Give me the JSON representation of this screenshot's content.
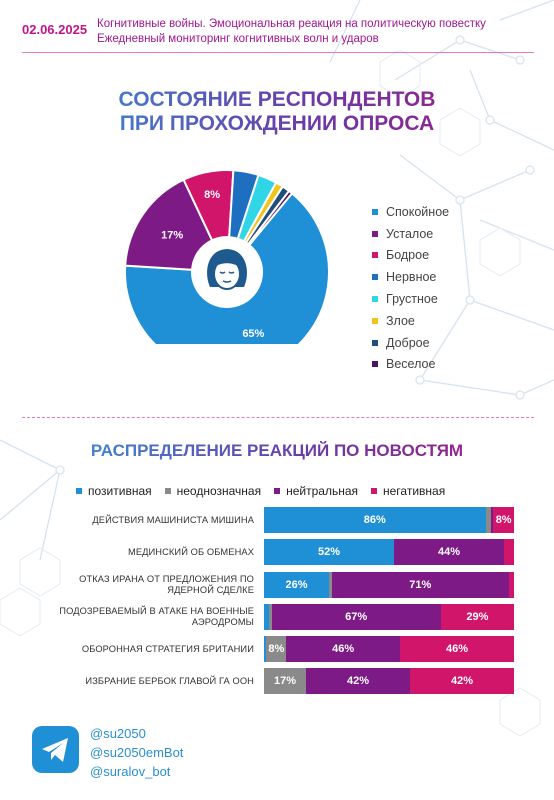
{
  "header": {
    "date": "02.06.2025",
    "line1": "Когнитивные войны. Эмоциональная реакция на политическую повестку",
    "line2": "Ежедневный мониторинг когнитивных волн и ударов"
  },
  "section1": {
    "title_line1": "СОСТОЯНИЕ РЕСПОНДЕНТОВ",
    "title_line2": "ПРИ ПРОХОЖДЕНИИ ОПРОСА"
  },
  "section2": {
    "title": "РАСПРЕДЕЛЕНИЕ РЕАКЦИЙ ПО НОВОСТЯМ"
  },
  "colors": {
    "positive": "#1f8fd6",
    "ambiguous": "#8a8a8a",
    "neutral": "#7d1a86",
    "negative": "#d1156b",
    "accent": "#c0148c"
  },
  "icons": [
    "woman-face-icon",
    "telegram-icon"
  ],
  "chart_data": [
    {
      "type": "pie",
      "title": "СОСТОЯНИЕ РЕСПОНДЕНТОВ ПРИ ПРОХОЖДЕНИИ ОПРОСА",
      "slices": [
        {
          "name": "Спокойное",
          "value": 65,
          "color": "#1f8fd6",
          "label": "65%"
        },
        {
          "name": "Усталое",
          "value": 17,
          "color": "#7d1a86",
          "label": "17%"
        },
        {
          "name": "Бодрое",
          "value": 8,
          "color": "#d1156b",
          "label": "8%"
        },
        {
          "name": "Нервное",
          "value": 4,
          "color": "#1e6fc0",
          "label": "4%"
        },
        {
          "name": "Грустное",
          "value": 3,
          "color": "#30d6e6",
          "label": "3%"
        },
        {
          "name": "Злое",
          "value": 1.2,
          "color": "#f2c21d",
          "label": ""
        },
        {
          "name": "Доброе",
          "value": 1.2,
          "color": "#1e4e7a",
          "label": ""
        },
        {
          "name": "Веселое",
          "value": 0.6,
          "color": "#4a1466",
          "label": ""
        }
      ],
      "legend_position": "right"
    },
    {
      "type": "bar",
      "stacked": true,
      "orientation": "horizontal",
      "title": "РАСПРЕДЕЛЕНИЕ РЕАКЦИЙ ПО НОВОСТЯМ",
      "legend": [
        "позитивная",
        "неоднозначная",
        "нейтральная",
        "негативная"
      ],
      "categories": [
        "ДЕЙСТВИЯ МАШИНИСТА МИШИНА",
        "МЕДИНСКИЙ ОБ ОБМЕНАХ",
        "ОТКАЗ ИРАНА ОТ ПРЕДЛОЖЕНИЯ ПО ЯДЕРНОЙ СДЕЛКЕ",
        "ПОДОЗРЕВАЕМЫЙ В АТАКЕ НА ВОЕННЫЕ АЭРОДРОМЫ",
        "ОБОРОННАЯ СТРАТЕГИЯ БРИТАНИИ",
        "ИЗБРАНИЕ БЕРБОК ГЛАВОЙ ГА ООН"
      ],
      "series": [
        {
          "name": "позитивная",
          "color": "#1f8fd6",
          "values": [
            86,
            52,
            26,
            2,
            1,
            0
          ],
          "labels": [
            "86%",
            "52%",
            "26%",
            "",
            "",
            ""
          ]
        },
        {
          "name": "неоднозначная",
          "color": "#8a8a8a",
          "values": [
            2,
            0,
            1,
            1,
            8,
            17
          ],
          "labels": [
            "",
            "",
            "",
            "",
            "8%",
            "17%"
          ]
        },
        {
          "name": "нейтральная",
          "color": "#7d1a86",
          "values": [
            1,
            44,
            71,
            67,
            46,
            42
          ],
          "labels": [
            "",
            "44%",
            "71%",
            "67%",
            "46%",
            "42%"
          ]
        },
        {
          "name": "негативная",
          "color": "#d1156b",
          "values": [
            8,
            4,
            2,
            29,
            46,
            42
          ],
          "labels": [
            "8%",
            "",
            "",
            "29%",
            "46%",
            "42%"
          ]
        }
      ]
    }
  ],
  "footer": {
    "handles": [
      "@su2050",
      "@su2050emBot",
      "@suralov_bot"
    ]
  }
}
